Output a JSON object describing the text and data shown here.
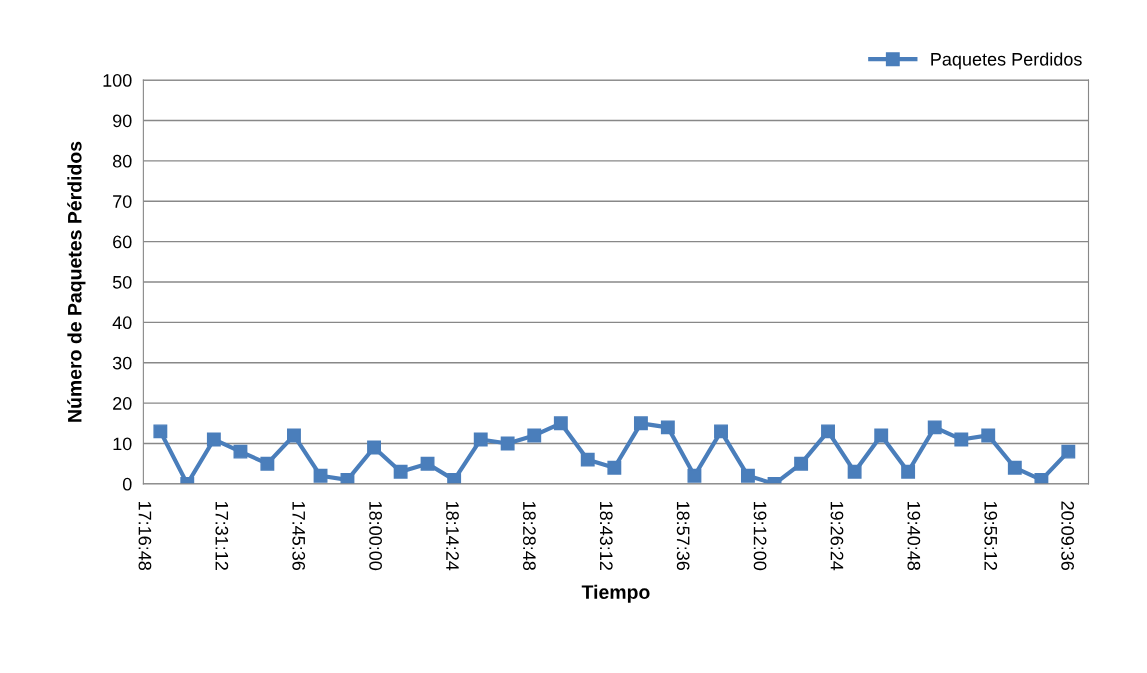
{
  "chart_data": {
    "type": "line",
    "xlabel": "Tiempo",
    "ylabel": "Número de Paquetes Pérdidos",
    "x": [
      17.333,
      17.417,
      17.5,
      17.583,
      17.667,
      17.75,
      17.833,
      17.917,
      18.0,
      18.083,
      18.167,
      18.25,
      18.333,
      18.417,
      18.5,
      18.583,
      18.667,
      18.75,
      18.833,
      18.917,
      19.0,
      19.083,
      19.167,
      19.25,
      19.333,
      19.417,
      19.5,
      19.583,
      19.667,
      19.75,
      19.833,
      19.917,
      20.0,
      20.083,
      20.167
    ],
    "series": [
      {
        "name": "Paquetes Perdidos",
        "color": "#4a7ebb",
        "values": [
          13,
          0,
          11,
          8,
          5,
          12,
          2,
          1,
          9,
          3,
          5,
          1,
          11,
          10,
          12,
          15,
          6,
          4,
          15,
          14,
          2,
          13,
          2,
          0,
          5,
          13,
          3,
          12,
          3,
          14,
          11,
          12,
          4,
          1,
          8
        ]
      }
    ],
    "xlim": [
      17.28,
      20.23
    ],
    "xticks": [
      {
        "value": 17.28,
        "label": "17:16:48"
      },
      {
        "value": 17.52,
        "label": "17:31:12"
      },
      {
        "value": 17.76,
        "label": "17:45:36"
      },
      {
        "value": 18.0,
        "label": "18:00:00"
      },
      {
        "value": 18.24,
        "label": "18:14:24"
      },
      {
        "value": 18.48,
        "label": "18:28:48"
      },
      {
        "value": 18.72,
        "label": "18:43:12"
      },
      {
        "value": 18.96,
        "label": "18:57:36"
      },
      {
        "value": 19.2,
        "label": "19:12:00"
      },
      {
        "value": 19.44,
        "label": "19:26:24"
      },
      {
        "value": 19.68,
        "label": "19:40:48"
      },
      {
        "value": 19.92,
        "label": "19:55:12"
      },
      {
        "value": 20.16,
        "label": "20:09:36"
      }
    ],
    "ylim": [
      0,
      100
    ],
    "yticks": [
      0,
      10,
      20,
      30,
      40,
      50,
      60,
      70,
      80,
      90,
      100
    ],
    "grid": "y",
    "legend": "top right",
    "marker": "square",
    "line_style": "solid"
  }
}
